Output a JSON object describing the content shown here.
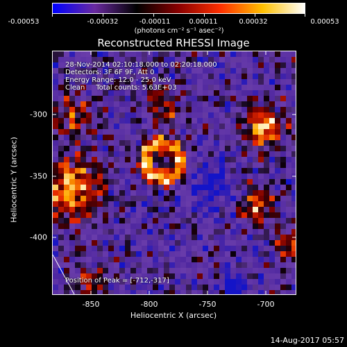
{
  "colorbar": {
    "gradient": [
      "#0000ff",
      "#6a2aa0",
      "#000000",
      "#8a0000",
      "#ff3000",
      "#ffc000",
      "#ffffff"
    ],
    "tick_labels": [
      "-0.00053",
      "-0.00032",
      "-0.00011",
      "0.00011",
      "0.00032",
      "0.00053"
    ],
    "units": "(photons cm⁻² s⁻¹ asec⁻²)"
  },
  "title": "Reconstructed RHESSI Image",
  "annotations": {
    "time_range": "28-Nov-2014 02:10:18.000 to 02:20:18.000",
    "detectors": "Detectors: 3F 6F 9F, Att 0",
    "energy": "Energy Range: 12.0 - 25.0 keV",
    "method": "Clean     Total counts: 5.63E+03",
    "peak": "Position of Peak = [-712,-317]"
  },
  "axes": {
    "xlabel": "Heliocentric X (arcsec)",
    "ylabel": "Heliocentric Y (arcsec)",
    "xticks": [
      "-850",
      "-800",
      "-750",
      "-700"
    ],
    "yticks": [
      "-300",
      "-350",
      "-400"
    ],
    "xlim": [
      -880,
      -688
    ],
    "ylim": [
      -447,
      -255
    ]
  },
  "date_stamp": "14-Aug-2017 05:57"
}
